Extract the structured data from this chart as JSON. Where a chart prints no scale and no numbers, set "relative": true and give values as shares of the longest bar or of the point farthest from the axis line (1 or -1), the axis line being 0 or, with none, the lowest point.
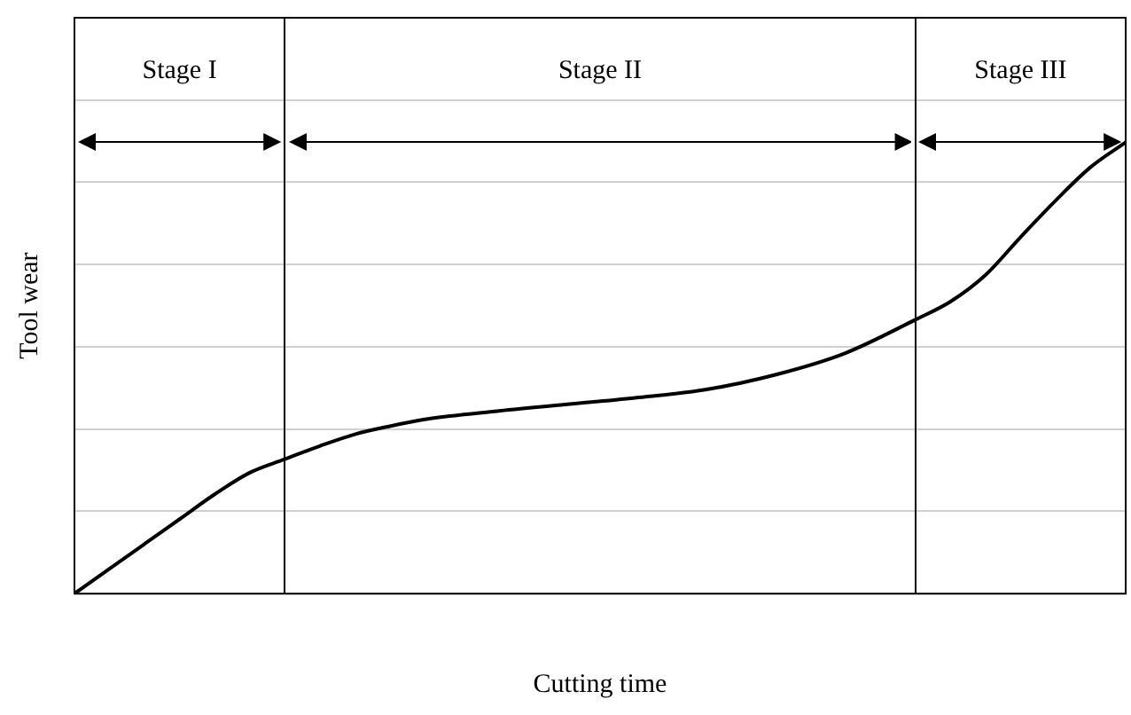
{
  "chart_data": {
    "type": "line",
    "xlabel": "Cutting time",
    "ylabel": "Tool wear",
    "relative": true,
    "grid": "y",
    "legend": false,
    "marker": "none",
    "line_style": "solid",
    "categories": [
      null,
      null,
      null,
      null,
      null,
      null,
      null,
      null,
      null,
      null,
      null,
      null,
      null,
      null,
      null,
      null,
      null,
      null,
      null,
      null,
      null,
      null,
      null,
      null,
      null,
      null,
      null,
      null,
      null,
      null,
      null,
      null,
      null,
      null,
      null,
      null,
      null,
      null,
      null,
      null,
      null,
      null,
      null,
      null,
      null,
      null,
      null,
      null,
      null,
      null,
      null,
      null,
      null,
      null,
      null,
      null,
      null,
      null,
      null,
      null,
      null
    ],
    "series": [
      {
        "color": "#000000",
        "values": [
          0,
          null,
          0.055,
          null,
          0.11,
          null,
          0.165,
          null,
          0.22,
          null,
          0.268,
          null,
          0.298,
          null,
          0.327,
          null,
          0.353,
          null,
          0.371,
          null,
          0.386,
          null,
          null,
          null,
          0.404,
          null,
          null,
          null,
          0.419,
          null,
          null,
          null,
          0.434,
          null,
          null,
          null,
          0.452,
          null,
          null,
          null,
          0.485,
          null,
          null,
          null,
          0.533,
          null,
          null,
          null,
          0.607,
          null,
          0.647,
          null,
          0.706,
          null,
          0.79,
          null,
          0.871,
          null,
          0.945,
          null,
          1
        ]
      }
    ],
    "annotations": [
      "Stage I",
      "Stage II",
      "Stage III"
    ]
  }
}
